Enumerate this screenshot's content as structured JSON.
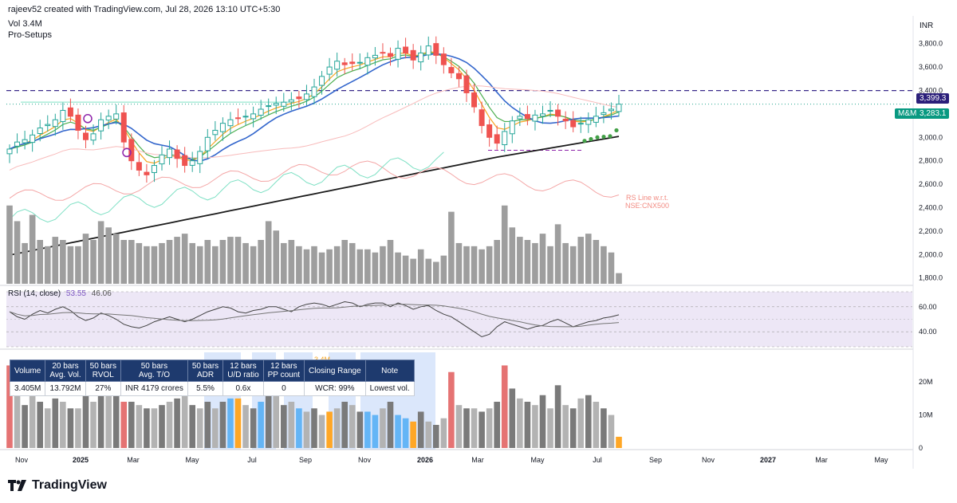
{
  "header": {
    "attribution": "rajeev52 created with TradingView.com, Jul 28, 2026 13:10 UTC+5:30",
    "volume_label": "Vol",
    "volume_value": "3.4M",
    "indicator_name": "Pro-Setups",
    "currency": "INR"
  },
  "price_axis": {
    "ticks": [
      "3,800.0",
      "3,600.0",
      "3,400.0",
      "3,200.0",
      "3,000.0",
      "2,800.0",
      "2,600.0",
      "2,400.0",
      "2,200.0",
      "2,000.0",
      "1,800.0"
    ],
    "last_price": "3,283.1",
    "last_price_symbol": "M&M",
    "resistance_price": "3,399.3"
  },
  "overlay_labels": {
    "rs_line": [
      "RS Line w.r.t.",
      "NSE:CNX500"
    ]
  },
  "rsi": {
    "label": "RSI (14, close)",
    "value1": "53.55",
    "value2": "46.06",
    "ticks": [
      "60.00",
      "40.00"
    ]
  },
  "volume_pane": {
    "ticks": [
      "20M",
      "10M",
      "0"
    ],
    "tag": "3.4M"
  },
  "x_axis": {
    "labels": [
      "Nov",
      "2025",
      "Mar",
      "May",
      "Jul",
      "Sep",
      "Nov",
      "2026",
      "Mar",
      "May",
      "Jul",
      "Sep",
      "Nov",
      "2027",
      "Mar",
      "May"
    ]
  },
  "stats_table": {
    "headers": [
      [
        "Volume"
      ],
      [
        "20 bars",
        "Avg. Vol."
      ],
      [
        "50 bars",
        "RVOL"
      ],
      [
        "50 bars",
        "Avg. T/O"
      ],
      [
        "50 bars",
        "ADR"
      ],
      [
        "12 bars",
        "U/D ratio"
      ],
      [
        "12 bars",
        "PP count"
      ],
      [
        "Closing Range"
      ],
      [
        "Note"
      ]
    ],
    "values": [
      "3.405M",
      "13.792M",
      "27%",
      "INR 4179 crores",
      "5.5%",
      "0.6x",
      "0",
      "WCR: 99%",
      "Lowest vol."
    ]
  },
  "colors": {
    "up_candle": "#26a69a",
    "down_candle": "#ef5350",
    "ema_fast": "#f6a623",
    "ema_mid": "#4caf50",
    "sma_blue": "#3366cc",
    "sma_200": "#1a1a1a",
    "rs_line": "#f4a6a6",
    "cyan_line": "#7ee0c4",
    "resistance": "#3a2a8a",
    "rsi_bg": "#ede7f6",
    "badge_green": "#089981"
  },
  "footer": {
    "brand": "TradingView"
  },
  "chart_data": {
    "type": "candlestick",
    "title": "",
    "currency": "INR",
    "x_range": [
      "2024-10",
      "2027-06"
    ],
    "y_range": [
      1750,
      3900
    ],
    "resistance_level": 3399.3,
    "last_close": 3283.1,
    "weekly_closes": [
      2900,
      2960,
      2980,
      3020,
      3080,
      3110,
      3150,
      3230,
      3180,
      3060,
      2980,
      3030,
      3150,
      3180,
      3200,
      2960,
      2800,
      2720,
      2680,
      2760,
      2850,
      2900,
      2820,
      2760,
      2800,
      2880,
      3000,
      3060,
      3120,
      3150,
      3160,
      3180,
      3200,
      3240,
      3270,
      3290,
      3300,
      3320,
      3330,
      3370,
      3430,
      3520,
      3600,
      3650,
      3620,
      3630,
      3640,
      3680,
      3700,
      3720,
      3690,
      3760,
      3720,
      3660,
      3720,
      3780,
      3700,
      3620,
      3550,
      3500,
      3380,
      3260,
      3100,
      3000,
      2950,
      3050,
      3140,
      3180,
      3160,
      3190,
      3200,
      3230,
      3180,
      3140,
      3090,
      3120,
      3150,
      3180,
      3210,
      3240,
      3283.1
    ],
    "volume_millions": [
      25,
      20,
      13,
      22,
      14,
      12,
      15,
      14,
      12,
      12,
      16,
      14,
      20,
      18,
      16,
      14,
      14,
      13,
      12,
      12,
      13,
      14,
      15,
      16,
      13,
      12,
      14,
      12,
      14,
      15,
      15,
      13,
      12,
      14,
      20,
      17,
      13,
      14,
      12,
      11,
      12,
      10,
      11,
      12,
      14,
      13,
      11,
      11,
      10,
      12,
      14,
      10,
      9,
      8,
      11,
      8,
      7,
      9,
      23,
      13,
      12,
      12,
      11,
      12,
      14,
      25,
      18,
      15,
      14,
      13,
      16,
      12,
      19,
      13,
      12,
      15,
      16,
      14,
      12,
      10,
      3.4
    ],
    "rsi_values": [
      56,
      52,
      50,
      54,
      57,
      55,
      58,
      60,
      57,
      52,
      49,
      51,
      55,
      53,
      50,
      46,
      44,
      43,
      45,
      48,
      50,
      52,
      50,
      48,
      50,
      53,
      56,
      58,
      60,
      59,
      56,
      55,
      57,
      58,
      60,
      60,
      58,
      56,
      60,
      62,
      63,
      62,
      60,
      62,
      64,
      63,
      60,
      62,
      63,
      63,
      60,
      63,
      61,
      58,
      60,
      61,
      57,
      54,
      52,
      48,
      44,
      40,
      36,
      38,
      44,
      48,
      46,
      44,
      42,
      44,
      45,
      48,
      50,
      47,
      44,
      46,
      48,
      49,
      51,
      52,
      53.55
    ]
  }
}
